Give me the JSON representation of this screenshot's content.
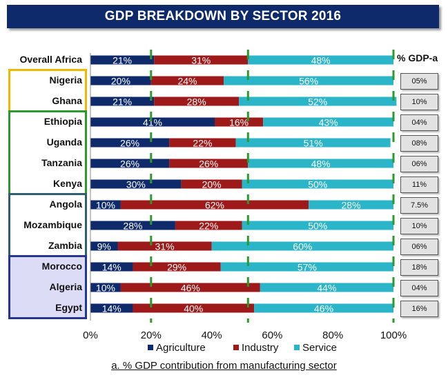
{
  "title": "GDP BREAKDOWN BY SECTOR 2016",
  "gdpa_header": "% GDP-a",
  "footnote": "a. % GDP contribution from manufacturing sector",
  "colors": {
    "agriculture": "#0e2a6b",
    "industry": "#9e1a1a",
    "service": "#2bb5c8",
    "guide": "#2a9a2a",
    "nigeria_ghana_box": "#f2b800",
    "east_box": "#2a9a2a",
    "south_box": "#2f5f6f",
    "north_box": "#26358f"
  },
  "legend": [
    {
      "label": "Agriculture",
      "color": "#0e2a6b"
    },
    {
      "label": "Industry",
      "color": "#9e1a1a"
    },
    {
      "label": "Service",
      "color": "#2bb5c8"
    }
  ],
  "chart_data": {
    "type": "bar",
    "orientation": "horizontal",
    "stacked": true,
    "title": "GDP BREAKDOWN BY SECTOR 2016",
    "categories": [
      "Overall Africa",
      "Nigeria",
      "Ghana",
      "Ethiopia",
      "Uganda",
      "Tanzania",
      "Kenya",
      "Angola",
      "Mozambique",
      "Zambia",
      "Morocco",
      "Algeria",
      "Egypt"
    ],
    "series": [
      {
        "name": "Agriculture",
        "values": [
          21,
          20,
          21,
          41,
          26,
          26,
          30,
          10,
          28,
          9,
          14,
          10,
          14
        ],
        "labels": [
          "21%",
          "20%",
          "21%",
          "41%",
          "26%",
          "26%",
          "30%",
          "10%",
          "28%",
          "9%",
          "14%",
          "10%",
          "14%"
        ]
      },
      {
        "name": "Industry",
        "values": [
          31,
          24,
          28,
          16,
          22,
          26,
          20,
          62,
          22,
          31,
          29,
          46,
          40
        ],
        "labels": [
          "31%",
          "24%",
          "28%",
          "16%",
          "22%",
          "26%",
          "20%",
          "62%",
          "22%",
          "31%",
          "29%",
          "46%",
          "40%"
        ]
      },
      {
        "name": "Service",
        "values": [
          48,
          56,
          52,
          43,
          51,
          48,
          50,
          28,
          50,
          60,
          57,
          44,
          46
        ],
        "labels": [
          "48%",
          "56%",
          "52%",
          "43%",
          "51%",
          "48%",
          "50%",
          "28%",
          "50%",
          "60%",
          "57%",
          "44%",
          "46%"
        ]
      }
    ],
    "gdp_manufacturing": [
      "",
      "05%",
      "10%",
      "04%",
      "08%",
      "06%",
      "11%",
      "7.5%",
      "10%",
      "06%",
      "18%",
      "04%",
      "16%"
    ],
    "xlim": [
      0,
      100
    ],
    "x_ticks": [
      "0%",
      "20%",
      "40%",
      "60%",
      "80%",
      "100%"
    ],
    "x_tick_values": [
      0,
      20,
      40,
      60,
      80,
      100
    ],
    "reference_lines": [
      20,
      52,
      100
    ],
    "legend_position": "bottom",
    "grid": false
  }
}
